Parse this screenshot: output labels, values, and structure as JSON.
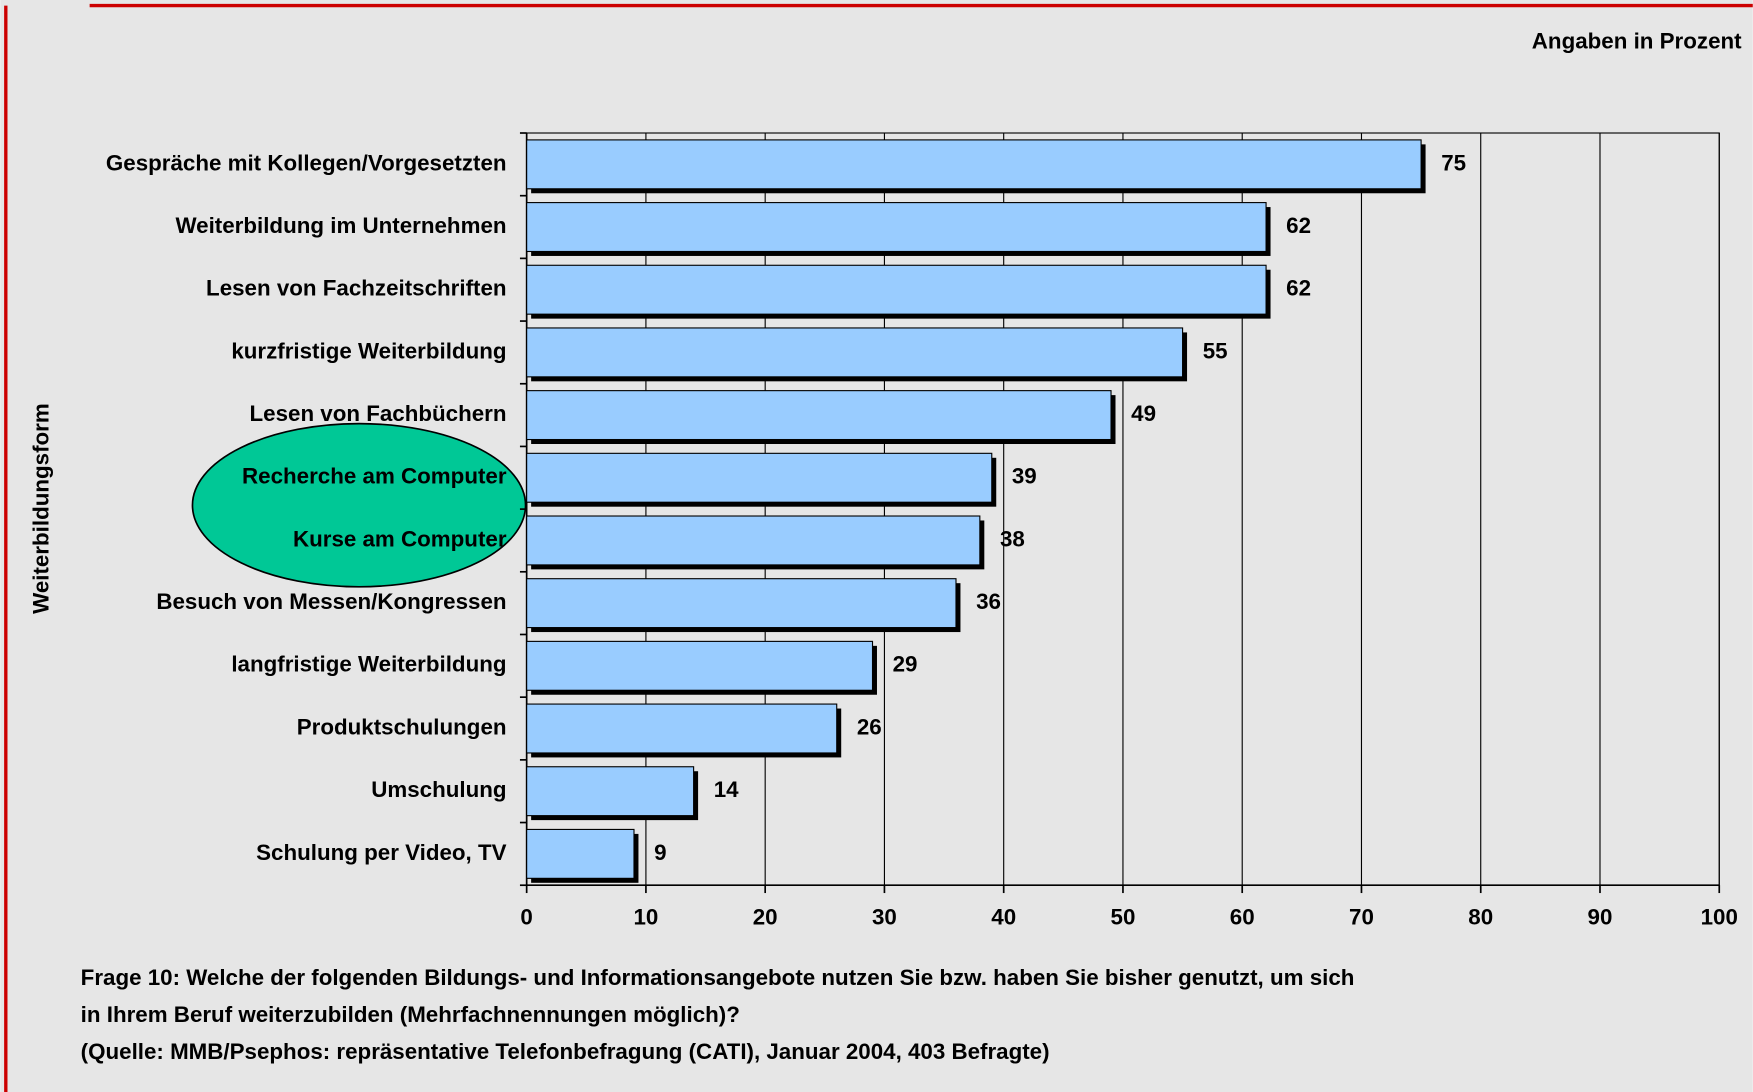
{
  "chart_data": {
    "type": "bar",
    "orientation": "horizontal",
    "unit_label": "Angaben in Prozent",
    "ylabel": "Weiterbildungsform",
    "categories": [
      "Gespräche mit Kollegen/Vorgesetzten",
      "Weiterbildung im Unternehmen",
      "Lesen von Fachzeitschriften",
      "kurzfristige Weiterbildung",
      "Lesen von Fachbüchern",
      "Recherche am Computer",
      "Kurse am Computer",
      "Besuch von Messen/Kongressen",
      "langfristige Weiterbildung",
      "Produktschulungen",
      "Umschulung",
      "Schulung per Video, TV"
    ],
    "values": [
      75,
      62,
      62,
      55,
      49,
      39,
      38,
      36,
      29,
      26,
      14,
      9
    ],
    "color": "#99ccff",
    "xlim": [
      0,
      100
    ],
    "xticks": [
      0,
      10,
      20,
      30,
      40,
      50,
      60,
      70,
      80,
      90,
      100
    ],
    "grid": true,
    "caption": [
      "Frage 10: Welche der folgenden Bildungs- und Informationsangebote nutzen Sie bzw. haben Sie bisher genutzt, um sich",
      "in Ihrem Beruf weiterzubilden (Mehrfachnennungen möglich)?",
      "(Quelle: MMB/Psephos: repräsentative Telefonbefragung (CATI), Januar 2004, 403 Befragte)"
    ]
  }
}
